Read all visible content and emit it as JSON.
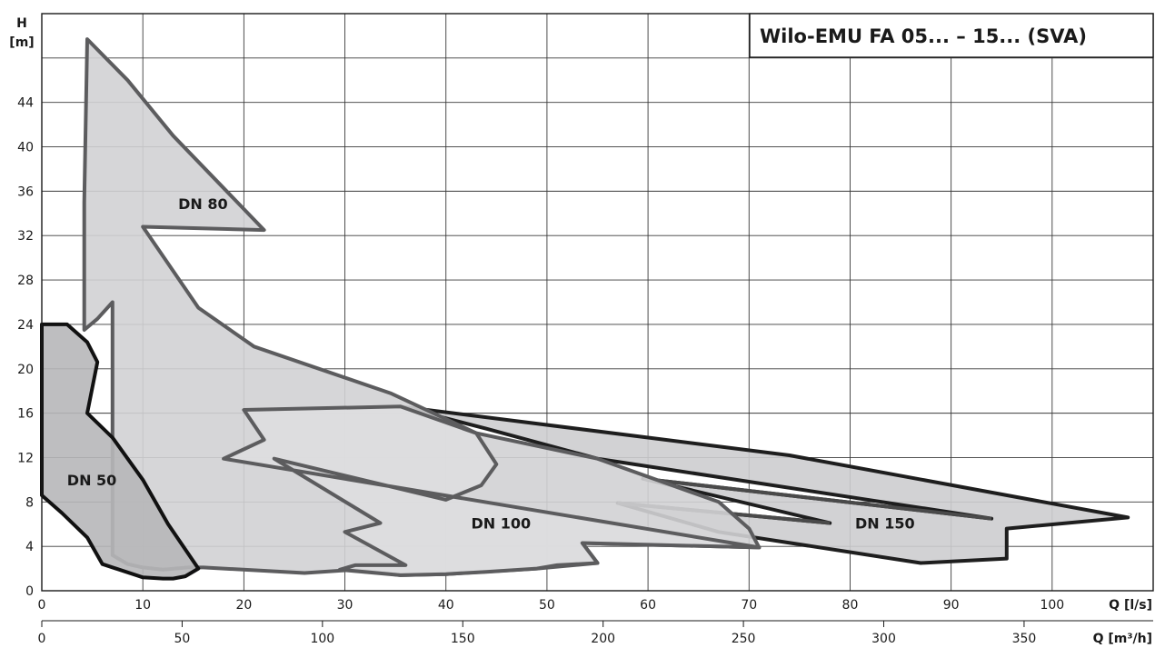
{
  "chart_data": {
    "type": "area",
    "title": "Wilo-EMU FA 05... – 15... (SVA)",
    "y_axis": {
      "label_line1": "H",
      "label_line2": "[m]",
      "range": [
        0,
        52
      ],
      "ticks": [
        0,
        4,
        8,
        12,
        16,
        20,
        24,
        28,
        32,
        36,
        40,
        44
      ]
    },
    "x_axis_ls": {
      "label": "Q [l/s]",
      "range": [
        0,
        110
      ],
      "ticks": [
        0,
        10,
        20,
        30,
        40,
        50,
        60,
        70,
        80,
        90,
        100
      ]
    },
    "x_axis_m3h": {
      "label": "Q [m³/h]",
      "ticks": [
        0,
        50,
        100,
        150,
        200,
        250,
        300,
        350
      ]
    },
    "grid": true,
    "series": [
      {
        "name": "DN 150",
        "label_at": [
          80.5,
          5.6
        ],
        "fill": "#cdcdcf",
        "stroke": "#1e1e1e",
        "outline": [
          [
            35.5,
            16.6
          ],
          [
            74,
            12.2
          ],
          [
            107.5,
            6.6
          ],
          [
            95.5,
            5.6
          ],
          [
            95.5,
            2.9
          ],
          [
            87,
            2.5
          ],
          [
            67,
            5.3
          ],
          [
            57,
            7.9
          ],
          [
            78,
            6.1
          ],
          [
            59.5,
            10.1
          ],
          [
            94,
            6.5
          ],
          [
            55,
            11.9
          ],
          [
            44,
            14.6
          ],
          [
            35.5,
            16.6
          ]
        ],
        "inner_lines": [
          [
            [
              59.5,
              10.1
            ],
            [
              94,
              6.5
            ]
          ],
          [
            [
              57,
              7.9
            ],
            [
              78,
              6.1
            ]
          ]
        ]
      },
      {
        "name": "DN 100",
        "label_at": [
          42.5,
          5.6
        ],
        "fill": "#dedee0",
        "stroke": "#5c5c5e",
        "outline": [
          [
            35.5,
            16.6
          ],
          [
            43,
            14.2
          ],
          [
            45,
            11.4
          ],
          [
            43.5,
            9.5
          ],
          [
            40,
            8.2
          ],
          [
            23,
            11.9
          ],
          [
            33.5,
            6.1
          ],
          [
            30,
            5.3
          ],
          [
            36,
            2.3
          ],
          [
            31,
            2.3
          ],
          [
            29.5,
            1.9
          ],
          [
            35.5,
            1.4
          ],
          [
            40,
            1.5
          ],
          [
            44,
            1.7
          ],
          [
            49,
            2.0
          ],
          [
            51,
            2.3
          ],
          [
            55,
            2.5
          ],
          [
            53.5,
            4.3
          ],
          [
            71,
            3.9
          ],
          [
            18,
            11.9
          ],
          [
            22,
            13.6
          ],
          [
            20,
            16.3
          ],
          [
            35.5,
            16.6
          ]
        ]
      },
      {
        "name": "DN 80",
        "label_at": [
          13.5,
          34.4
        ],
        "fill": "#d2d2d4",
        "stroke": "#5c5c5e",
        "outline": [
          [
            4.5,
            49.7
          ],
          [
            8.5,
            46.0
          ],
          [
            13.0,
            41.0
          ],
          [
            22.0,
            32.5
          ],
          [
            10.0,
            32.8
          ],
          [
            15.5,
            25.5
          ],
          [
            21.0,
            22.0
          ],
          [
            34.5,
            17.8
          ],
          [
            43.0,
            14.2
          ],
          [
            55.0,
            11.9
          ],
          [
            67.0,
            8.0
          ],
          [
            70.0,
            5.6
          ],
          [
            71.0,
            3.9
          ],
          [
            53.5,
            4.3
          ],
          [
            55.0,
            2.5
          ],
          [
            49.0,
            2.0
          ],
          [
            40.0,
            1.5
          ],
          [
            35.5,
            1.4
          ],
          [
            31.0,
            1.9
          ],
          [
            26.0,
            1.6
          ],
          [
            22.0,
            1.8
          ],
          [
            16.0,
            2.1
          ],
          [
            14.5,
            2.1
          ],
          [
            12.0,
            1.9
          ],
          [
            10.0,
            2.1
          ],
          [
            8.5,
            2.4
          ],
          [
            7.0,
            3.2
          ],
          [
            7.0,
            26.0
          ],
          [
            5.5,
            24.5
          ],
          [
            4.2,
            23.5
          ],
          [
            4.2,
            35.0
          ],
          [
            4.5,
            49.7
          ]
        ]
      },
      {
        "name": "DN 50",
        "label_at": [
          2.5,
          9.5
        ],
        "fill": "#b7b7b9",
        "stroke": "#111111",
        "outline": [
          [
            0,
            24.0
          ],
          [
            2.5,
            24.0
          ],
          [
            4.5,
            22.4
          ],
          [
            5.5,
            20.6
          ],
          [
            4.5,
            16.0
          ],
          [
            7.0,
            13.8
          ],
          [
            10.0,
            10.0
          ],
          [
            12.5,
            6.0
          ],
          [
            15.5,
            2.0
          ],
          [
            14.2,
            1.3
          ],
          [
            13.0,
            1.1
          ],
          [
            12.0,
            1.1
          ],
          [
            10.0,
            1.2
          ],
          [
            6.0,
            2.4
          ],
          [
            4.5,
            4.8
          ],
          [
            2.0,
            7.0
          ],
          [
            0,
            8.6
          ],
          [
            0,
            24.0
          ]
        ]
      }
    ]
  }
}
